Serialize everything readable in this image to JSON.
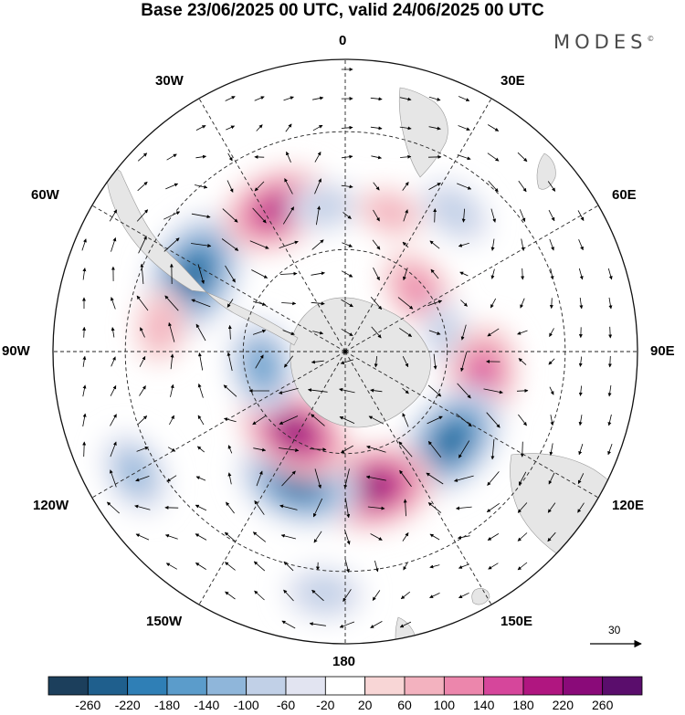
{
  "title": "Base 23/06/2025 00 UTC, valid 24/06/2025 00 UTC",
  "brand": "MODES",
  "brand_mark": "©",
  "longitude_labels": {
    "lon_0": "0",
    "lon_30e": "30E",
    "lon_60e": "60E",
    "lon_90e": "90E",
    "lon_120e": "120E",
    "lon_150e": "150E",
    "lon_180": "180",
    "lon_150w": "150W",
    "lon_120w": "120W",
    "lon_90w": "90W",
    "lon_60w": "60W",
    "lon_30w": "30W"
  },
  "wind_reference": "30",
  "colorbar": {
    "ticks": [
      "-260",
      "-220",
      "-180",
      "-140",
      "-100",
      "-60",
      "-20",
      "20",
      "60",
      "100",
      "140",
      "180",
      "220",
      "260"
    ],
    "colors": [
      "#1c3f5c",
      "#1f5f8d",
      "#2f7fb6",
      "#5b9ccb",
      "#8fb6da",
      "#c1d0e7",
      "#e2e4f1",
      "#ffffff",
      "#f8d6d6",
      "#f3b2bf",
      "#ec86ac",
      "#d6469b",
      "#b01680",
      "#8a0a79",
      "#5a0d6c"
    ]
  },
  "field_features": [
    {
      "name": "low-pacific-west",
      "lon": -63,
      "lat": -42,
      "value": -250
    },
    {
      "name": "high-south-atlantic",
      "lon": -26,
      "lat": -45,
      "value": 200
    },
    {
      "name": "low-atlantic-central",
      "lon": -8,
      "lat": -48,
      "value": -70
    },
    {
      "name": "high-south-atlantic-east",
      "lon": 18,
      "lat": -48,
      "value": 60
    },
    {
      "name": "low-indian-west",
      "lon": 38,
      "lat": -40,
      "value": -90
    },
    {
      "name": "high-indian-sw",
      "lon": 50,
      "lat": -62,
      "value": 120
    },
    {
      "name": "low-indian-central",
      "lon": 80,
      "lat": -60,
      "value": -60
    },
    {
      "name": "high-indian-east",
      "lon": 100,
      "lat": -50,
      "value": 170
    },
    {
      "name": "low-australia-south",
      "lon": 130,
      "lat": -50,
      "value": -230
    },
    {
      "name": "high-tasman",
      "lon": 168,
      "lat": -50,
      "value": 230
    },
    {
      "name": "low-pacific-south",
      "lon": -160,
      "lat": -50,
      "value": -230
    },
    {
      "name": "low-pacific-north",
      "lon": -175,
      "lat": -25,
      "value": -90
    },
    {
      "name": "high-ross-sea",
      "lon": -148,
      "lat": -62,
      "value": 220
    },
    {
      "name": "low-amundsen",
      "lon": -100,
      "lat": -65,
      "value": -150
    },
    {
      "name": "high-pacific-east",
      "lon": -82,
      "lat": -38,
      "value": 80
    },
    {
      "name": "low-pacific-far-east",
      "lon": -120,
      "lat": -25,
      "value": -110
    }
  ]
}
